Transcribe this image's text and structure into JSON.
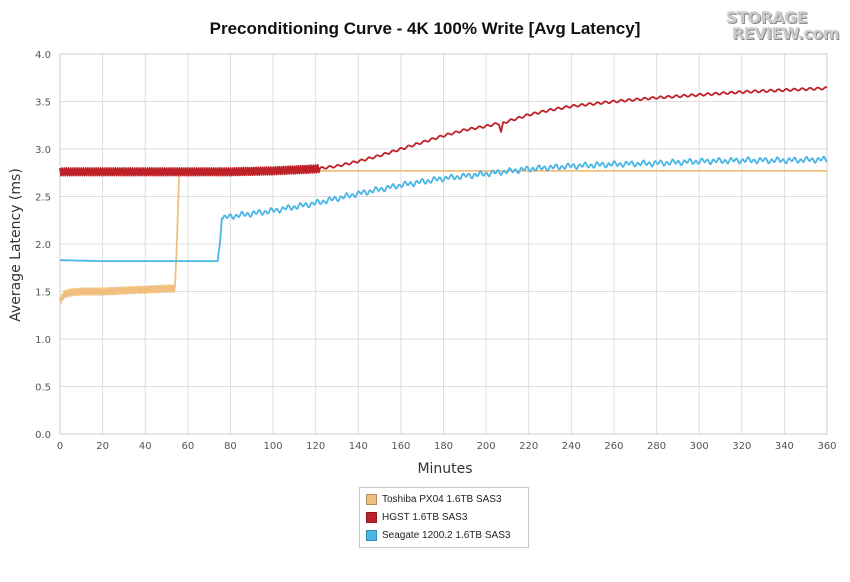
{
  "chart_data": {
    "type": "line",
    "title": "Preconditioning Curve - 4K 100% Write [Avg Latency]",
    "xlabel": "Minutes",
    "ylabel": "Average Latency (ms)",
    "xlim": [
      0,
      360
    ],
    "ylim": [
      0,
      4.0
    ],
    "x_ticks": [
      0,
      20,
      40,
      60,
      80,
      100,
      120,
      140,
      160,
      180,
      200,
      220,
      240,
      260,
      280,
      300,
      320,
      340,
      360
    ],
    "y_ticks": [
      "0.0",
      "0.5",
      "1.0",
      "1.5",
      "2.0",
      "2.5",
      "3.0",
      "3.5",
      "4.0"
    ],
    "grid": true,
    "legend_position": "bottom-center",
    "series": [
      {
        "name": "Toshiba PX04 1.6TB SAS3",
        "color": "#f0bf7e",
        "x": [
          0,
          2,
          5,
          10,
          20,
          30,
          40,
          50,
          54,
          55,
          56,
          57,
          60,
          80,
          100,
          120,
          140,
          160,
          180,
          200,
          220,
          240,
          260,
          280,
          300,
          320,
          340,
          360
        ],
        "y": [
          1.4,
          1.47,
          1.49,
          1.5,
          1.5,
          1.51,
          1.52,
          1.53,
          1.53,
          2.1,
          2.78,
          2.78,
          2.77,
          2.77,
          2.77,
          2.77,
          2.77,
          2.77,
          2.77,
          2.77,
          2.77,
          2.77,
          2.77,
          2.77,
          2.77,
          2.77,
          2.77,
          2.77
        ]
      },
      {
        "name": "HGST 1.6TB SAS3",
        "color": "#be2127",
        "x": [
          0,
          20,
          40,
          60,
          80,
          100,
          120,
          130,
          140,
          150,
          160,
          170,
          180,
          190,
          200,
          206,
          207,
          208,
          210,
          220,
          230,
          240,
          260,
          280,
          300,
          320,
          340,
          360
        ],
        "y": [
          2.76,
          2.76,
          2.76,
          2.76,
          2.76,
          2.77,
          2.79,
          2.82,
          2.87,
          2.93,
          3.0,
          3.07,
          3.14,
          3.2,
          3.24,
          3.27,
          3.18,
          3.27,
          3.29,
          3.36,
          3.41,
          3.45,
          3.5,
          3.54,
          3.57,
          3.6,
          3.62,
          3.64
        ]
      },
      {
        "name": "Seagate 1200.2 1.6TB SAS3",
        "color": "#49b6e6",
        "x": [
          0,
          20,
          40,
          60,
          70,
          74,
          75,
          76,
          80,
          100,
          120,
          140,
          160,
          180,
          200,
          220,
          240,
          260,
          280,
          300,
          320,
          340,
          360
        ],
        "y": [
          1.83,
          1.82,
          1.82,
          1.82,
          1.82,
          1.82,
          2.0,
          2.27,
          2.29,
          2.35,
          2.43,
          2.53,
          2.62,
          2.69,
          2.74,
          2.79,
          2.82,
          2.84,
          2.85,
          2.87,
          2.88,
          2.88,
          2.89
        ]
      }
    ]
  },
  "logo": {
    "line1": "STORAGE",
    "line2": "REVIEW.com"
  }
}
